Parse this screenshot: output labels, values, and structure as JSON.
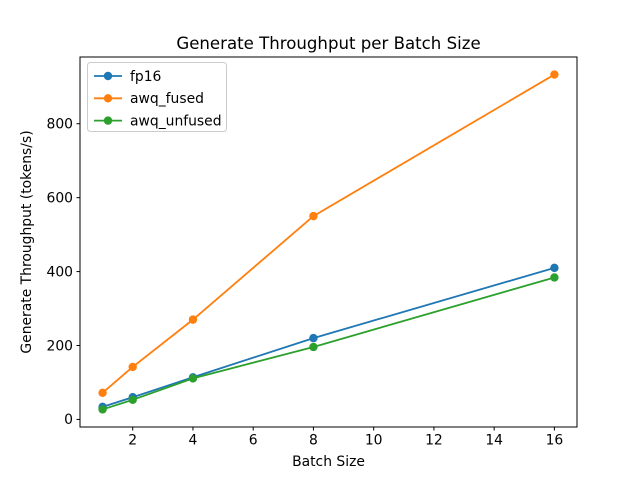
{
  "figure": {
    "background_color": "#ffffff",
    "frame_color": "#000000"
  },
  "chart_data": {
    "type": "line",
    "title": "Generate Throughput per Batch Size",
    "xlabel": "Batch Size",
    "ylabel": "Generate Throughput (tokens/s)",
    "x": [
      1,
      2,
      4,
      8,
      16
    ],
    "series": [
      {
        "name": "fp16",
        "color": "#1f77b4",
        "values": [
          34,
          60,
          114,
          220,
          410
        ]
      },
      {
        "name": "awq_fused",
        "color": "#ff7f0e",
        "values": [
          72,
          142,
          270,
          550,
          933
        ]
      },
      {
        "name": "awq_unfused",
        "color": "#2ca02c",
        "values": [
          27,
          53,
          111,
          196,
          384
        ]
      }
    ],
    "xticks": [
      2,
      4,
      6,
      8,
      10,
      12,
      14,
      16
    ],
    "yticks": [
      0,
      200,
      400,
      600,
      800
    ],
    "xlim": [
      0.25,
      16.75
    ],
    "ylim": [
      -20.5,
      980.5
    ],
    "legend_position": "upper left",
    "legend_labels": [
      "fp16",
      "awq_fused",
      "awq_unfused"
    ],
    "marker": "circle",
    "grid": false
  }
}
